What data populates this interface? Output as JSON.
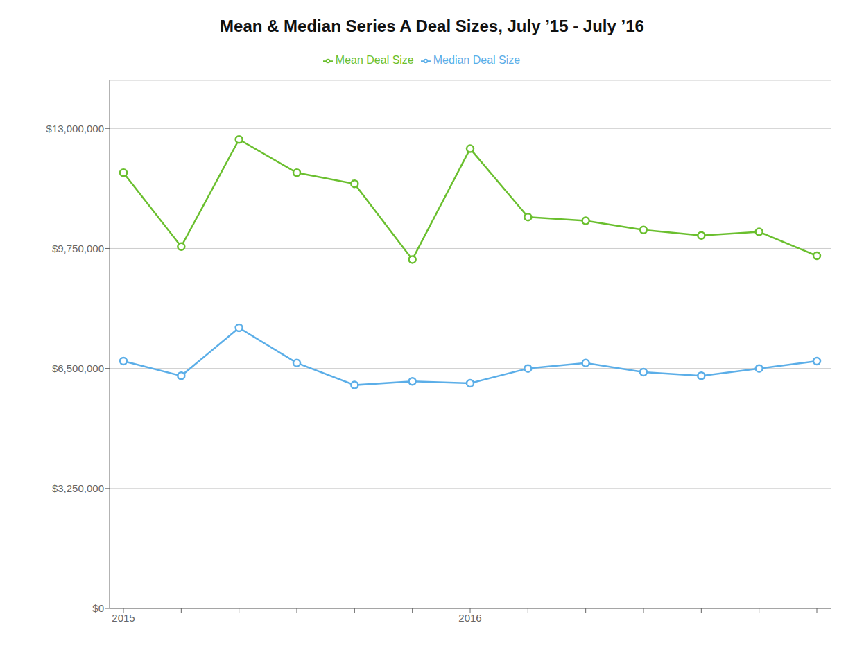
{
  "chart_data": {
    "type": "line",
    "title": "Mean & Median Series A Deal Sizes, July ’15 - July ’16",
    "categories": [
      "2015",
      null,
      null,
      null,
      null,
      null,
      "2016",
      null,
      null,
      null,
      null,
      null,
      null
    ],
    "series": [
      {
        "name": "Median Deal Size",
        "color": "#5baee8",
        "marker": "o",
        "values": [
          6700000,
          6300000,
          7600000,
          6650000,
          6050000,
          6150000,
          6100000,
          6500000,
          6650000,
          6400000,
          6300000,
          6500000,
          6700000
        ]
      },
      {
        "name": "Mean Deal Size",
        "color": "#6abf2e",
        "marker": "o",
        "values": [
          11800000,
          9800000,
          12700000,
          11800000,
          11500000,
          9450000,
          12450000,
          10600000,
          10500000,
          10250000,
          10100000,
          10200000,
          9550000
        ]
      }
    ],
    "ylim": [
      0,
      14300000
    ],
    "yticks": [
      {
        "value": 0,
        "label": "$0"
      },
      {
        "value": 3250000,
        "label": "$3,250,000"
      },
      {
        "value": 6500000,
        "label": "$6,500,000"
      },
      {
        "value": 9750000,
        "label": "$9,750,000"
      },
      {
        "value": 13000000,
        "label": "$13,000,000"
      }
    ],
    "grid": true,
    "legend": "top"
  }
}
